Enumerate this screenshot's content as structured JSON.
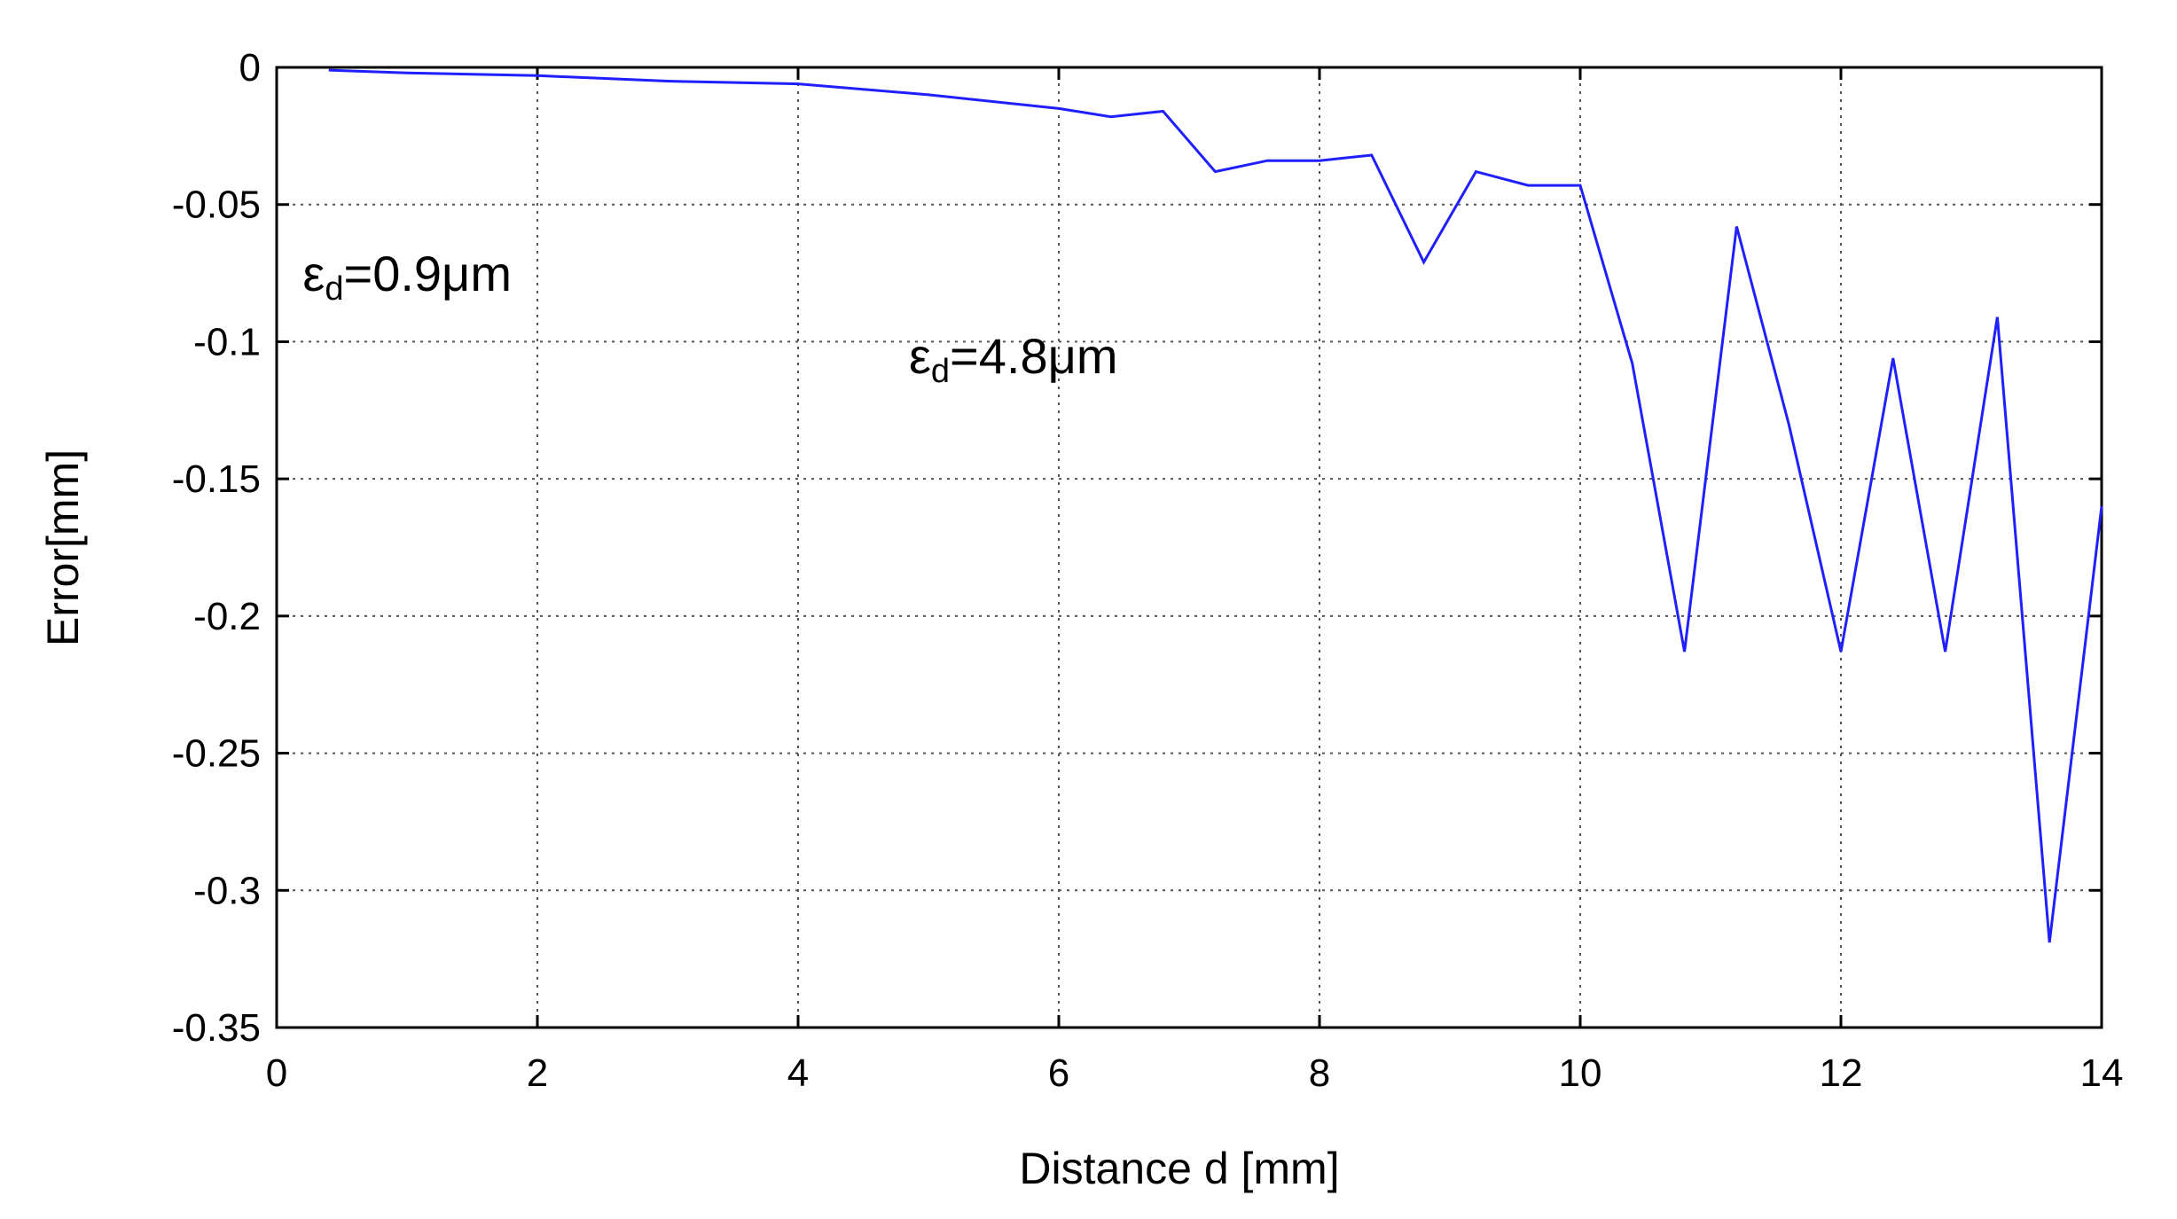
{
  "chart_data": {
    "type": "line",
    "title": "",
    "xlabel": "Distance d [mm]",
    "ylabel": "Error[mm]",
    "xlim": [
      0,
      14
    ],
    "ylim": [
      -0.35,
      0
    ],
    "xticks": [
      0,
      2,
      4,
      6,
      8,
      10,
      12,
      14
    ],
    "xtick_labels": [
      "0",
      "2",
      "4",
      "6",
      "8",
      "10",
      "12",
      "14"
    ],
    "yticks": [
      0,
      -0.05,
      -0.1,
      -0.15,
      -0.2,
      -0.25,
      -0.3,
      -0.35
    ],
    "ytick_labels": [
      "0",
      "-0.05",
      "-0.1",
      "-0.15",
      "-0.2",
      "-0.25",
      "-0.3",
      "-0.35"
    ],
    "grid": true,
    "line_color": "#1f1fff",
    "annotations": [
      {
        "symbol": "ε",
        "sub": "d",
        "text": "=0.9μm",
        "x": 0.2,
        "y": -0.075
      },
      {
        "symbol": "ε",
        "sub": "d",
        "text": "=4.8μm",
        "x": 4.85,
        "y": -0.105
      }
    ],
    "series": [
      {
        "x": [
          0.4,
          1.0,
          2.0,
          3.0,
          4.0,
          5.0,
          6.0,
          6.4,
          6.8,
          7.2,
          7.6,
          8.0,
          8.4,
          8.8,
          9.2,
          9.6,
          10.0,
          10.4,
          10.8,
          11.2,
          11.6,
          12.0,
          12.4,
          12.8,
          13.2,
          13.6,
          14.0
        ],
        "y": [
          -0.001,
          -0.002,
          -0.003,
          -0.005,
          -0.006,
          -0.01,
          -0.015,
          -0.018,
          -0.016,
          -0.038,
          -0.034,
          -0.034,
          -0.032,
          -0.071,
          -0.038,
          -0.043,
          -0.043,
          -0.108,
          -0.213,
          -0.058,
          -0.13,
          -0.213,
          -0.106,
          -0.213,
          -0.091,
          -0.319,
          -0.16
        ]
      }
    ]
  }
}
